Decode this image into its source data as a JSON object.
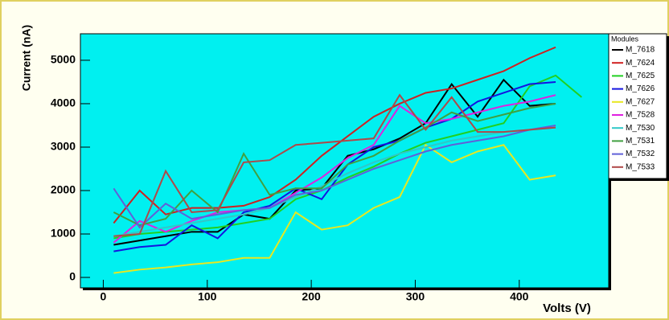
{
  "chart_data": {
    "type": "line",
    "x_label": "Volts (V)",
    "y_label": "Current (nA)",
    "legend_title": "Modules",
    "x": [
      10,
      35,
      60,
      85,
      110,
      135,
      160,
      185,
      210,
      235,
      260,
      285,
      310,
      335,
      360,
      385,
      410,
      435,
      460
    ],
    "xlim": [
      -22,
      486
    ],
    "ylim": [
      -240,
      5610
    ],
    "xticks": [
      0,
      100,
      200,
      300,
      400
    ],
    "yticks": [
      0,
      1000,
      2000,
      3000,
      4000,
      5000
    ],
    "legend": "right",
    "background": "#00f0f0",
    "series": [
      {
        "name": "M_7618",
        "color": "#000000",
        "values": [
          750,
          850,
          950,
          1050,
          1050,
          1450,
          1350,
          2000,
          2050,
          2800,
          2950,
          3200,
          3550,
          4450,
          3700,
          4550,
          3950,
          4000,
          null
        ]
      },
      {
        "name": "M_7624",
        "color": "#d02020",
        "values": [
          1250,
          2000,
          1450,
          1600,
          1600,
          1650,
          1850,
          2250,
          2800,
          3250,
          3700,
          4000,
          4250,
          4350,
          4550,
          4750,
          5050,
          5300,
          null
        ]
      },
      {
        "name": "M_7625",
        "color": "#20d020",
        "values": [
          900,
          1000,
          1050,
          1100,
          1150,
          1250,
          1350,
          1800,
          2000,
          2300,
          2550,
          2850,
          3100,
          3250,
          3400,
          3550,
          4400,
          4650,
          4150
        ]
      },
      {
        "name": "M_7626",
        "color": "#1414e0",
        "values": [
          600,
          700,
          750,
          1200,
          900,
          1500,
          1650,
          2050,
          1800,
          2600,
          3000,
          3150,
          3450,
          3650,
          4050,
          4250,
          4450,
          4500,
          null
        ]
      },
      {
        "name": "M_7627",
        "color": "#e8e820",
        "values": [
          100,
          180,
          230,
          300,
          350,
          450,
          450,
          1500,
          1100,
          1200,
          1600,
          1850,
          3050,
          2650,
          2900,
          3050,
          2250,
          2350,
          null
        ]
      },
      {
        "name": "M_7528",
        "color": "#e020e0",
        "values": [
          800,
          1300,
          1050,
          1300,
          1500,
          1550,
          1600,
          1950,
          2300,
          2750,
          3050,
          3950,
          3550,
          3650,
          3800,
          3950,
          4050,
          4200,
          null
        ]
      },
      {
        "name": "M_7530",
        "color": "#30c8c8",
        "values": [
          950,
          1050,
          1150,
          1250,
          1350,
          1450,
          1600,
          1850,
          2100,
          2400,
          2650,
          2850,
          3000,
          3150,
          3250,
          3350,
          3400,
          3450,
          null
        ]
      },
      {
        "name": "M_7531",
        "color": "#40a040",
        "values": [
          1500,
          1200,
          1350,
          2000,
          1500,
          2850,
          1900,
          2050,
          2050,
          2600,
          2800,
          3150,
          3450,
          3800,
          3600,
          3750,
          3900,
          4000,
          null
        ]
      },
      {
        "name": "M_7532",
        "color": "#6060d8",
        "values": [
          2050,
          1150,
          1700,
          1350,
          1450,
          1550,
          1600,
          1900,
          2000,
          2250,
          2500,
          2700,
          2900,
          3050,
          3150,
          3250,
          3400,
          3500,
          null
        ]
      },
      {
        "name": "M_7533",
        "color": "#b04848",
        "values": [
          950,
          1000,
          2450,
          1500,
          1550,
          2650,
          2700,
          3050,
          3100,
          3150,
          3200,
          4200,
          3400,
          4150,
          3350,
          3350,
          3400,
          3450,
          null
        ]
      }
    ]
  }
}
